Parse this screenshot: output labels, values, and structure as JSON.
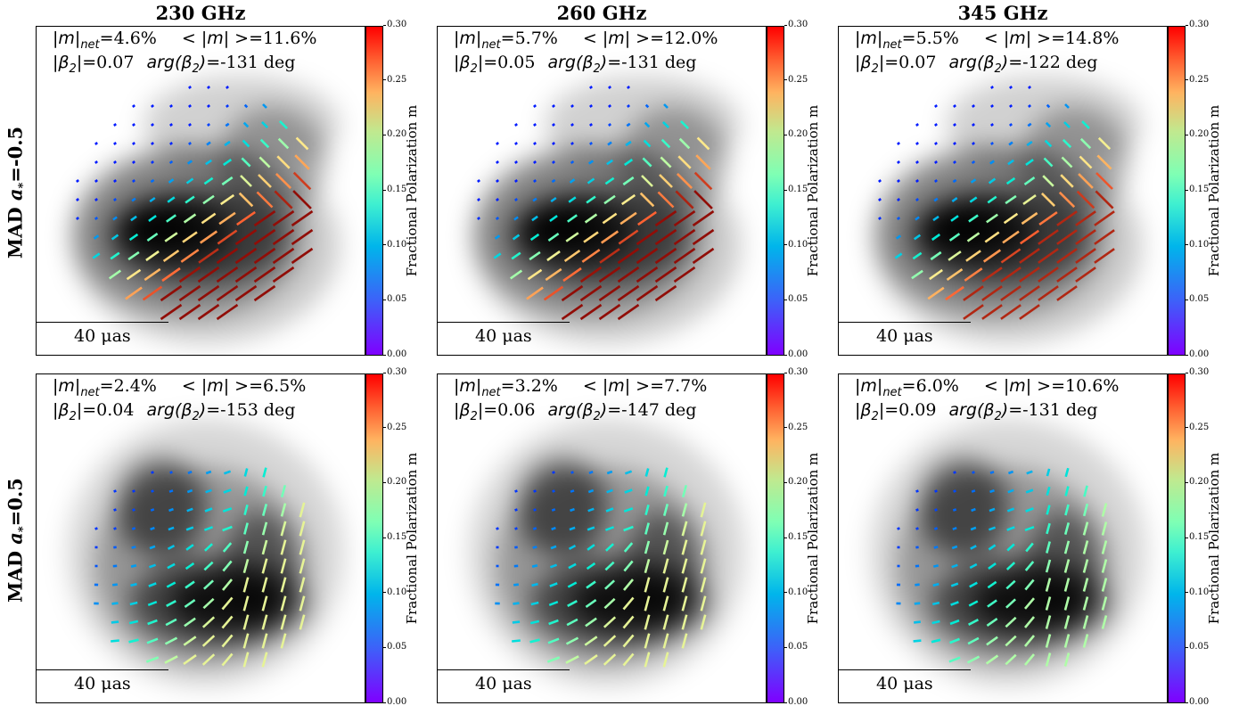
{
  "columns": [
    "230 GHz",
    "260 GHz",
    "345 GHz"
  ],
  "rows": [
    {
      "label_prefix": "MAD",
      "label_param": "a",
      "label_sub": "*",
      "label_value": "=-0.5"
    },
    {
      "label_prefix": "MAD",
      "label_param": "a",
      "label_sub": "*",
      "label_value": "=0.5"
    }
  ],
  "symbols": {
    "m_net": "|m|",
    "m_net_sub": "net",
    "m_avg": "< |m| >",
    "beta": "|β",
    "beta_sub": "2",
    "beta_close": "|",
    "arg": "arg(β",
    "arg_close": ")"
  },
  "scale_label": "40 μas",
  "colorbar": {
    "label": "Fractional Polarization m",
    "ticks": [
      "0.00",
      "0.05",
      "0.10",
      "0.15",
      "0.20",
      "0.25",
      "0.30"
    ],
    "colors": [
      "#7f00ff",
      "#00b5eb",
      "#7fffb4",
      "#ffb360",
      "#ff0000"
    ]
  },
  "panels": [
    {
      "m_net": "=4.6%",
      "m_avg": "=11.6%",
      "beta2": "=0.07",
      "arg_beta2": "=-131 deg",
      "morph": "a",
      "peak": 0.3
    },
    {
      "m_net": "=5.7%",
      "m_avg": "=12.0%",
      "beta2": "=0.05",
      "arg_beta2": "=-131 deg",
      "morph": "a",
      "peak": 0.3
    },
    {
      "m_net": "=5.5%",
      "m_avg": "=14.8%",
      "beta2": "=0.07",
      "arg_beta2": "=-122 deg",
      "morph": "a",
      "peak": 0.29
    },
    {
      "m_net": "=2.4%",
      "m_avg": "=6.5%",
      "beta2": "=0.04",
      "arg_beta2": "=-153 deg",
      "morph": "b",
      "peak": 0.2
    },
    {
      "m_net": "=3.2%",
      "m_avg": "=7.7%",
      "beta2": "=0.06",
      "arg_beta2": "=-147 deg",
      "morph": "b",
      "peak": 0.2
    },
    {
      "m_net": "=6.0%",
      "m_avg": "=10.6%",
      "beta2": "=0.09",
      "arg_beta2": "=-131 deg",
      "morph": "b",
      "peak": 0.18
    }
  ]
}
